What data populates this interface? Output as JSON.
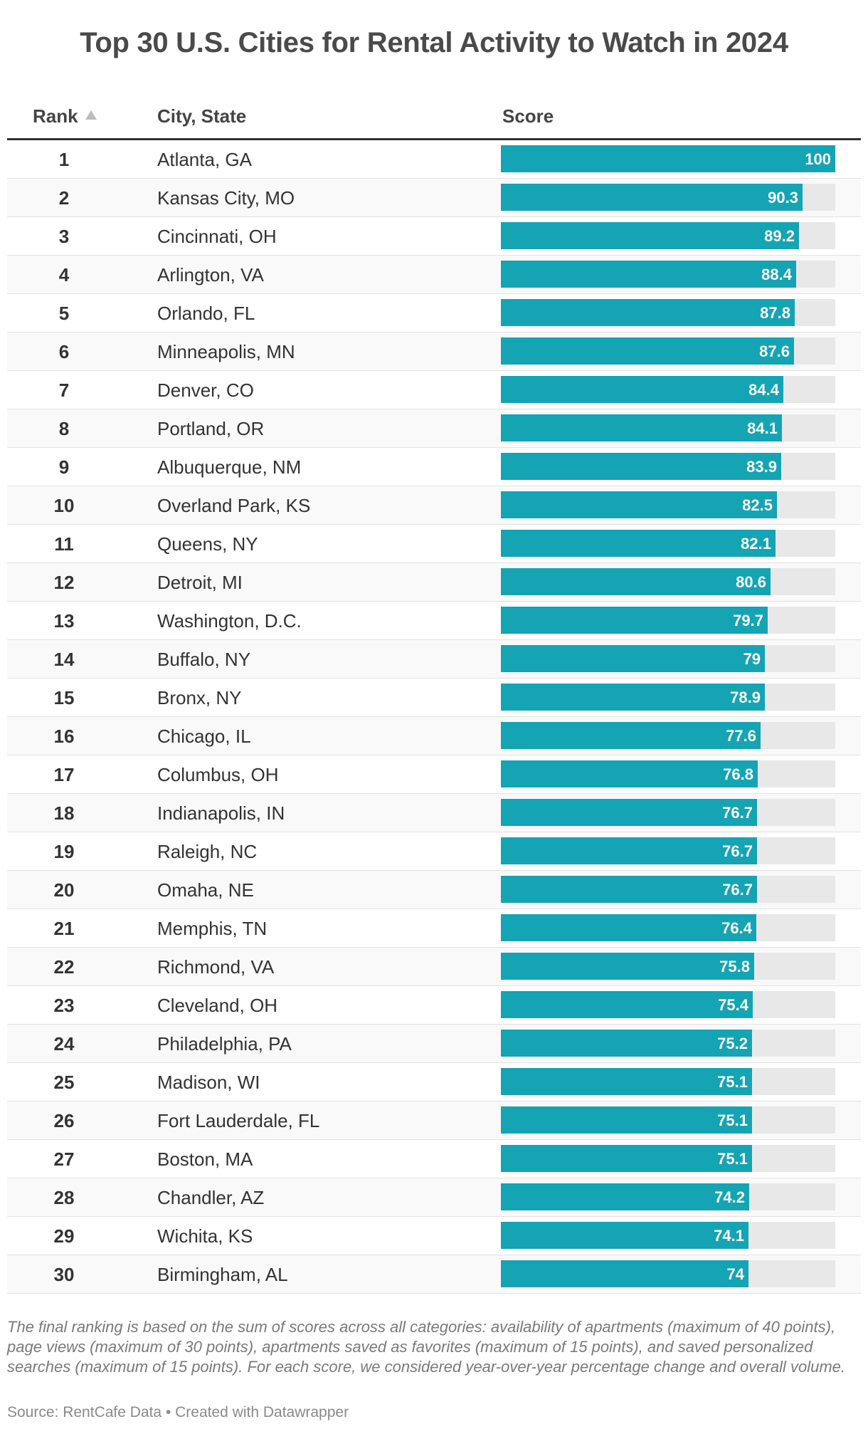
{
  "title": "Top 30 U.S. Cities for Rental Activity to Watch in 2024",
  "columns": {
    "rank": "Rank",
    "city": "City, State",
    "score": "Score"
  },
  "chart_data": {
    "type": "bar",
    "orientation": "horizontal",
    "title": "Top 30 U.S. Cities for Rental Activity to Watch in 2024",
    "xlim": [
      0,
      100
    ],
    "colors": {
      "bar": "#14a4b4",
      "track": "#e8e8e8"
    },
    "rows": [
      {
        "rank": "1",
        "city": "Atlanta, GA",
        "score": 100,
        "label": "100"
      },
      {
        "rank": "2",
        "city": "Kansas City, MO",
        "score": 90.3,
        "label": "90.3"
      },
      {
        "rank": "3",
        "city": "Cincinnati, OH",
        "score": 89.2,
        "label": "89.2"
      },
      {
        "rank": "4",
        "city": "Arlington, VA",
        "score": 88.4,
        "label": "88.4"
      },
      {
        "rank": "5",
        "city": "Orlando, FL",
        "score": 87.8,
        "label": "87.8"
      },
      {
        "rank": "6",
        "city": "Minneapolis, MN",
        "score": 87.6,
        "label": "87.6"
      },
      {
        "rank": "7",
        "city": "Denver, CO",
        "score": 84.4,
        "label": "84.4"
      },
      {
        "rank": "8",
        "city": "Portland, OR",
        "score": 84.1,
        "label": "84.1"
      },
      {
        "rank": "9",
        "city": "Albuquerque, NM",
        "score": 83.9,
        "label": "83.9"
      },
      {
        "rank": "10",
        "city": "Overland Park, KS",
        "score": 82.5,
        "label": "82.5"
      },
      {
        "rank": "11",
        "city": "Queens, NY",
        "score": 82.1,
        "label": "82.1"
      },
      {
        "rank": "12",
        "city": "Detroit, MI",
        "score": 80.6,
        "label": "80.6"
      },
      {
        "rank": "13",
        "city": "Washington, D.C.",
        "score": 79.7,
        "label": "79.7"
      },
      {
        "rank": "14",
        "city": "Buffalo, NY",
        "score": 79,
        "label": "79"
      },
      {
        "rank": "15",
        "city": "Bronx, NY",
        "score": 78.9,
        "label": "78.9"
      },
      {
        "rank": "16",
        "city": "Chicago, IL",
        "score": 77.6,
        "label": "77.6"
      },
      {
        "rank": "17",
        "city": "Columbus, OH",
        "score": 76.8,
        "label": "76.8"
      },
      {
        "rank": "18",
        "city": "Indianapolis, IN",
        "score": 76.7,
        "label": "76.7"
      },
      {
        "rank": "19",
        "city": "Raleigh, NC",
        "score": 76.7,
        "label": "76.7"
      },
      {
        "rank": "20",
        "city": "Omaha, NE",
        "score": 76.7,
        "label": "76.7"
      },
      {
        "rank": "21",
        "city": "Memphis, TN",
        "score": 76.4,
        "label": "76.4"
      },
      {
        "rank": "22",
        "city": "Richmond, VA",
        "score": 75.8,
        "label": "75.8"
      },
      {
        "rank": "23",
        "city": "Cleveland, OH",
        "score": 75.4,
        "label": "75.4"
      },
      {
        "rank": "24",
        "city": "Philadelphia, PA",
        "score": 75.2,
        "label": "75.2"
      },
      {
        "rank": "25",
        "city": "Madison, WI",
        "score": 75.1,
        "label": "75.1"
      },
      {
        "rank": "26",
        "city": "Fort Lauderdale, FL",
        "score": 75.1,
        "label": "75.1"
      },
      {
        "rank": "27",
        "city": "Boston, MA",
        "score": 75.1,
        "label": "75.1"
      },
      {
        "rank": "28",
        "city": "Chandler, AZ",
        "score": 74.2,
        "label": "74.2"
      },
      {
        "rank": "29",
        "city": "Wichita, KS",
        "score": 74.1,
        "label": "74.1"
      },
      {
        "rank": "30",
        "city": "Birmingham, AL",
        "score": 74,
        "label": "74"
      }
    ]
  },
  "footnote": "The final ranking is based on the sum of scores across all categories: availability of apartments (maximum of 40 points), page views (maximum of 30 points), apartments saved as favorites (maximum of 15 points), and saved personalized searches (maximum of 15 points). For each score, we considered year-over-year percentage change and overall volume.",
  "source": "Source: RentCafe Data • Created with Datawrapper"
}
